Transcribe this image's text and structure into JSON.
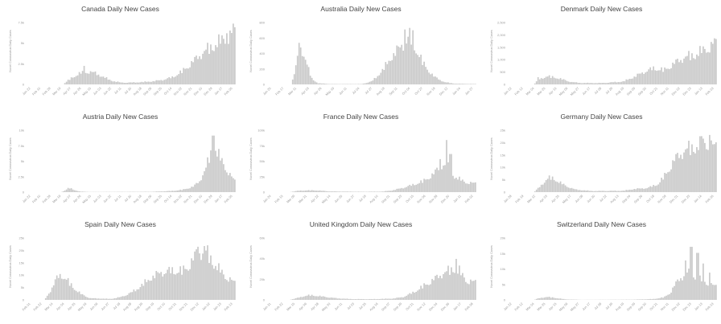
{
  "chart_data": [
    {
      "type": "bar",
      "title": "Canada Daily New Cases",
      "ylabel": "Novel Coronavirus Daily Cases",
      "y_ticks": [
        "7.5k",
        "5k",
        "2.5k",
        "0"
      ],
      "ylim": [
        0,
        9000
      ],
      "x_ticks": [
        "Jan 22",
        "Feb 10",
        "Feb 29",
        "Mar 19",
        "Apr 07",
        "Apr 26",
        "May 15",
        "Jun 03",
        "Jun 22",
        "Jul 11",
        "Jul 30",
        "Aug 18",
        "Sep 06",
        "Sep 25",
        "Oct 14",
        "Nov 02",
        "Nov 21",
        "Dec 10",
        "Dec 29",
        "Jan 17",
        "Feb 05"
      ],
      "profile": [
        [
          0,
          0
        ],
        [
          0.17,
          0
        ],
        [
          0.2,
          700
        ],
        [
          0.24,
          1400
        ],
        [
          0.27,
          1700
        ],
        [
          0.3,
          1750
        ],
        [
          0.33,
          1500
        ],
        [
          0.36,
          1100
        ],
        [
          0.4,
          550
        ],
        [
          0.45,
          250
        ],
        [
          0.5,
          260
        ],
        [
          0.55,
          320
        ],
        [
          0.6,
          420
        ],
        [
          0.65,
          620
        ],
        [
          0.7,
          1000
        ],
        [
          0.75,
          1900
        ],
        [
          0.8,
          3200
        ],
        [
          0.85,
          4500
        ],
        [
          0.9,
          5400
        ],
        [
          0.95,
          6300
        ],
        [
          1,
          7000
        ]
      ],
      "peaks": [
        [
          0.27,
          2500
        ],
        [
          0.995,
          8200
        ],
        [
          0.96,
          6900
        ]
      ]
    },
    {
      "type": "bar",
      "title": "Australia Daily New Cases",
      "ylabel": "Novel Coronavirus Daily Cases",
      "y_ticks": [
        "800",
        "600",
        "400",
        "200",
        "0"
      ],
      "ylim": [
        0,
        850
      ],
      "x_ticks": [
        "Jan 25",
        "Feb 17",
        "Mar 11",
        "Apr 03",
        "Apr 26",
        "May 19",
        "Jun 11",
        "Jul 04",
        "Jul 27",
        "Aug 19",
        "Sep 11",
        "Oct 04",
        "Oct 27",
        "Nov 19",
        "Dec 12",
        "Jan 04",
        "Jan 27"
      ],
      "profile": [
        [
          0,
          0
        ],
        [
          0.11,
          0
        ],
        [
          0.13,
          200
        ],
        [
          0.15,
          470
        ],
        [
          0.17,
          410
        ],
        [
          0.19,
          220
        ],
        [
          0.21,
          70
        ],
        [
          0.24,
          15
        ],
        [
          0.3,
          5
        ],
        [
          0.45,
          5
        ],
        [
          0.5,
          40
        ],
        [
          0.55,
          180
        ],
        [
          0.6,
          380
        ],
        [
          0.65,
          520
        ],
        [
          0.68,
          600
        ],
        [
          0.71,
          480
        ],
        [
          0.75,
          260
        ],
        [
          0.8,
          100
        ],
        [
          0.85,
          30
        ],
        [
          0.9,
          10
        ],
        [
          1,
          5
        ]
      ],
      "peaks": [
        [
          0.15,
          530
        ],
        [
          0.66,
          700
        ],
        [
          0.68,
          720
        ],
        [
          0.7,
          690
        ]
      ]
    },
    {
      "type": "bar",
      "title": "Denmark Daily New Cases",
      "ylabel": "Novel Coronavirus Daily Cases",
      "y_ticks": [
        "2,500",
        "2,000",
        "1,500",
        "1,000",
        "500",
        "0"
      ],
      "ylim": [
        0,
        2750
      ],
      "x_ticks": [
        "Jan 22",
        "Feb 12",
        "Mar 04",
        "Mar 25",
        "Apr 15",
        "May 06",
        "May 27",
        "Jun 17",
        "Jul 08",
        "Jul 29",
        "Aug 19",
        "Sep 09",
        "Sep 30",
        "Oct 21",
        "Nov 11",
        "Dec 02",
        "Dec 23",
        "Jan 13",
        "Feb 03"
      ],
      "profile": [
        [
          0,
          0
        ],
        [
          0.12,
          0
        ],
        [
          0.14,
          200
        ],
        [
          0.18,
          340
        ],
        [
          0.22,
          300
        ],
        [
          0.27,
          180
        ],
        [
          0.3,
          100
        ],
        [
          0.35,
          60
        ],
        [
          0.45,
          60
        ],
        [
          0.55,
          120
        ],
        [
          0.6,
          300
        ],
        [
          0.65,
          520
        ],
        [
          0.7,
          680
        ],
        [
          0.75,
          600
        ],
        [
          0.8,
          900
        ],
        [
          0.85,
          1150
        ],
        [
          0.9,
          1250
        ],
        [
          0.95,
          1500
        ],
        [
          1,
          1700
        ]
      ],
      "peaks": [
        [
          0.14,
          300
        ],
        [
          0.99,
          1900
        ]
      ]
    },
    {
      "type": "bar",
      "title": "Austria Daily New Cases",
      "ylabel": "Novel Coronavirus Daily Cases",
      "y_ticks": [
        "10k",
        "7.5k",
        "5k",
        "2.5k",
        "0"
      ],
      "ylim": [
        0,
        10500
      ],
      "x_ticks": [
        "Jan 22",
        "Feb 10",
        "Feb 29",
        "Mar 19",
        "Apr 07",
        "Apr 26",
        "May 15",
        "Jun 03",
        "Jun 22",
        "Jul 11",
        "Jul 30",
        "Aug 18",
        "Sep 06",
        "Sep 25",
        "Oct 14",
        "Nov 02",
        "Nov 21",
        "Dec 10",
        "Dec 29",
        "Jan 17",
        "Feb 05"
      ],
      "profile": [
        [
          0,
          0
        ],
        [
          0.16,
          0
        ],
        [
          0.18,
          300
        ],
        [
          0.2,
          700
        ],
        [
          0.22,
          400
        ],
        [
          0.25,
          100
        ],
        [
          0.3,
          30
        ],
        [
          0.6,
          60
        ],
        [
          0.7,
          200
        ],
        [
          0.75,
          400
        ],
        [
          0.8,
          900
        ],
        [
          0.83,
          1800
        ],
        [
          0.86,
          3800
        ],
        [
          0.88,
          6000
        ],
        [
          0.9,
          7200
        ],
        [
          0.92,
          6000
        ],
        [
          0.95,
          4200
        ],
        [
          0.98,
          2600
        ],
        [
          1,
          1800
        ]
      ],
      "peaks": [
        [
          0.895,
          8900
        ]
      ]
    },
    {
      "type": "bar",
      "title": "France Daily New Cases",
      "ylabel": "Novel Coronavirus Daily Cases",
      "y_ticks": [
        "100k",
        "75k",
        "50k",
        "25k",
        "0"
      ],
      "ylim": [
        0,
        105000
      ],
      "x_ticks": [
        "Jan 24",
        "Feb 15",
        "Mar 09",
        "Mar 31",
        "Apr 22",
        "May 14",
        "Jun 05",
        "Jun 27",
        "Jul 19",
        "Aug 10",
        "Sep 01",
        "Sep 23",
        "Oct 15",
        "Nov 06",
        "Nov 28",
        "Dec 20",
        "Jan 11",
        "Feb 02"
      ],
      "profile": [
        [
          0,
          0
        ],
        [
          0.1,
          0
        ],
        [
          0.15,
          2500
        ],
        [
          0.22,
          3000
        ],
        [
          0.3,
          1200
        ],
        [
          0.45,
          600
        ],
        [
          0.55,
          900
        ],
        [
          0.6,
          3000
        ],
        [
          0.65,
          7000
        ],
        [
          0.7,
          12000
        ],
        [
          0.75,
          18000
        ],
        [
          0.8,
          30000
        ],
        [
          0.84,
          45000
        ],
        [
          0.87,
          40000
        ],
        [
          0.9,
          25000
        ],
        [
          0.95,
          16000
        ],
        [
          1,
          14000
        ]
      ],
      "peaks": [
        [
          0.86,
          82000
        ],
        [
          0.88,
          60000
        ],
        [
          0.83,
          52000
        ]
      ]
    },
    {
      "type": "bar",
      "title": "Germany Daily New Cases",
      "ylabel": "Novel Coronavirus Daily Cases",
      "y_ticks": [
        "25k",
        "20k",
        "15k",
        "10k",
        "5k",
        "0"
      ],
      "ylim": [
        0,
        28000
      ],
      "x_ticks": [
        "Jan 28",
        "Feb 19",
        "Mar 12",
        "Apr 03",
        "Apr 25",
        "May 17",
        "Jun 08",
        "Jun 30",
        "Jul 22",
        "Aug 13",
        "Sep 04",
        "Sep 26",
        "Oct 18",
        "Nov 09",
        "Dec 01",
        "Dec 23",
        "Jan 14",
        "Feb 05"
      ],
      "profile": [
        [
          0,
          0
        ],
        [
          0.12,
          0
        ],
        [
          0.15,
          2500
        ],
        [
          0.18,
          5500
        ],
        [
          0.2,
          6300
        ],
        [
          0.23,
          5000
        ],
        [
          0.27,
          2800
        ],
        [
          0.32,
          1100
        ],
        [
          0.4,
          500
        ],
        [
          0.55,
          600
        ],
        [
          0.6,
          1300
        ],
        [
          0.67,
          1800
        ],
        [
          0.72,
          3500
        ],
        [
          0.76,
          8000
        ],
        [
          0.8,
          14000
        ],
        [
          0.85,
          18000
        ],
        [
          0.9,
          19500
        ],
        [
          0.95,
          21000
        ],
        [
          1,
          19000
        ]
      ],
      "peaks": [
        [
          0.93,
          23500
        ],
        [
          0.97,
          24000
        ]
      ]
    },
    {
      "type": "bar",
      "title": "Spain Daily New Cases",
      "ylabel": "Novel Coronavirus Daily Cases",
      "y_ticks": [
        "25k",
        "20k",
        "15k",
        "10k",
        "5k",
        "0"
      ],
      "ylim": [
        0,
        27000
      ],
      "x_ticks": [
        "Feb 01",
        "Feb 22",
        "Mar 14",
        "Apr 04",
        "Apr 25",
        "May 16",
        "Jun 06",
        "Jun 27",
        "Jul 18",
        "Aug 08",
        "Aug 29",
        "Sep 19",
        "Oct 10",
        "Oct 31",
        "Nov 21",
        "Dec 12",
        "Jan 02",
        "Jan 23",
        "Feb 13"
      ],
      "profile": [
        [
          0,
          0
        ],
        [
          0.08,
          0
        ],
        [
          0.11,
          4000
        ],
        [
          0.14,
          9000
        ],
        [
          0.16,
          10500
        ],
        [
          0.19,
          8000
        ],
        [
          0.22,
          5000
        ],
        [
          0.26,
          2200
        ],
        [
          0.3,
          700
        ],
        [
          0.4,
          400
        ],
        [
          0.45,
          1200
        ],
        [
          0.5,
          3000
        ],
        [
          0.55,
          6000
        ],
        [
          0.6,
          9500
        ],
        [
          0.65,
          11500
        ],
        [
          0.7,
          12000
        ],
        [
          0.75,
          12000
        ],
        [
          0.78,
          14500
        ],
        [
          0.82,
          19500
        ],
        [
          0.86,
          20000
        ],
        [
          0.9,
          15000
        ],
        [
          0.95,
          10000
        ],
        [
          1,
          7000
        ]
      ],
      "peaks": [
        [
          0.82,
          21500
        ],
        [
          0.85,
          21800
        ]
      ]
    },
    {
      "type": "bar",
      "title": "United Kingdom Daily New Cases",
      "ylabel": "Novel Coronavirus Daily Cases",
      "y_ticks": [
        "60k",
        "40k",
        "20k",
        "0"
      ],
      "ylim": [
        0,
        70000
      ],
      "x_ticks": [
        "Jan 31",
        "Feb 22",
        "Mar 15",
        "Apr 06",
        "Apr 28",
        "May 20",
        "Jun 11",
        "Jul 03",
        "Jul 25",
        "Aug 16",
        "Sep 07",
        "Sep 29",
        "Oct 21",
        "Nov 12",
        "Dec 04",
        "Dec 26",
        "Jan 17",
        "Feb 08"
      ],
      "profile": [
        [
          0,
          0
        ],
        [
          0.1,
          0
        ],
        [
          0.13,
          1500
        ],
        [
          0.17,
          4000
        ],
        [
          0.2,
          5000
        ],
        [
          0.24,
          4200
        ],
        [
          0.28,
          3000
        ],
        [
          0.33,
          1700
        ],
        [
          0.4,
          900
        ],
        [
          0.5,
          800
        ],
        [
          0.6,
          1400
        ],
        [
          0.65,
          3000
        ],
        [
          0.7,
          8000
        ],
        [
          0.75,
          15000
        ],
        [
          0.8,
          22000
        ],
        [
          0.84,
          28000
        ],
        [
          0.88,
          32000
        ],
        [
          0.9,
          34000
        ],
        [
          0.93,
          28000
        ],
        [
          0.96,
          20000
        ],
        [
          1,
          19000
        ]
      ],
      "peaks": [
        [
          0.905,
          43000
        ],
        [
          0.92,
          36000
        ]
      ]
    },
    {
      "type": "bar",
      "title": "Switzerland Daily New Cases",
      "ylabel": "Novel Coronavirus Daily Cases",
      "y_ticks": [
        "20k",
        "15k",
        "10k",
        "5k",
        "0"
      ],
      "ylim": [
        0,
        22000
      ],
      "x_ticks": [
        "Jan 22",
        "Feb 12",
        "Mar 04",
        "Mar 25",
        "Apr 15",
        "May 06",
        "May 27",
        "Jun 17",
        "Jul 08",
        "Jul 29",
        "Aug 19",
        "Sep 09",
        "Sep 30",
        "Oct 21",
        "Nov 11",
        "Dec 02",
        "Dec 23",
        "Jan 13",
        "Feb 03"
      ],
      "profile": [
        [
          0,
          0
        ],
        [
          0.12,
          0
        ],
        [
          0.14,
          500
        ],
        [
          0.18,
          1000
        ],
        [
          0.22,
          700
        ],
        [
          0.27,
          200
        ],
        [
          0.35,
          40
        ],
        [
          0.6,
          100
        ],
        [
          0.7,
          300
        ],
        [
          0.75,
          900
        ],
        [
          0.78,
          2500
        ],
        [
          0.8,
          5000
        ],
        [
          0.83,
          7500
        ],
        [
          0.86,
          9000
        ],
        [
          0.89,
          8500
        ],
        [
          0.92,
          7000
        ],
        [
          0.96,
          5500
        ],
        [
          1,
          4500
        ]
      ],
      "peaks": [
        [
          0.88,
          17500
        ],
        [
          0.91,
          15500
        ],
        [
          0.85,
          13000
        ],
        [
          0.94,
          12000
        ],
        [
          0.97,
          9000
        ]
      ]
    }
  ]
}
